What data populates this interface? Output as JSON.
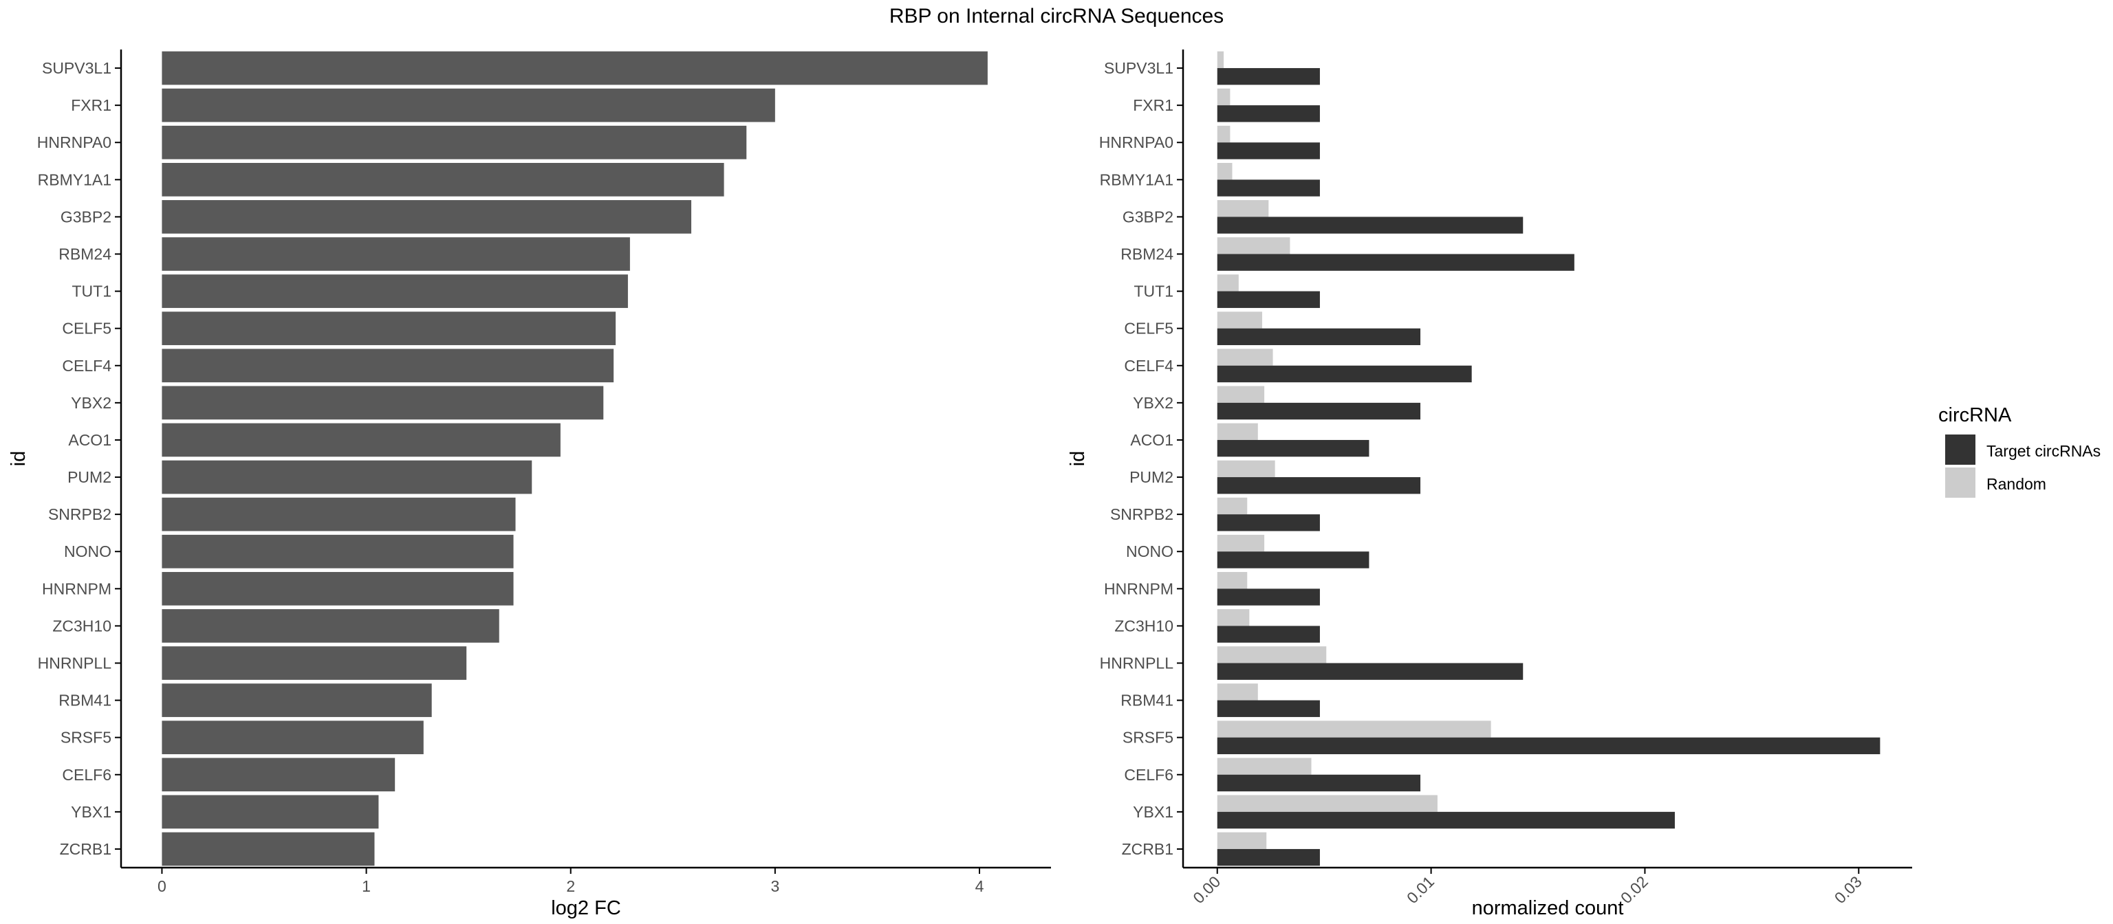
{
  "title": "RBP on Internal circRNA Sequences",
  "colors": {
    "left_bar": "#595959",
    "target": "#333333",
    "random": "#cccccc",
    "axis": "#000000",
    "text": "#4d4d4d"
  },
  "chart_data": [
    {
      "type": "bar",
      "orientation": "horizontal",
      "categories": [
        "SUPV3L1",
        "FXR1",
        "HNRNPA0",
        "RBMY1A1",
        "G3BP2",
        "RBM24",
        "TUT1",
        "CELF5",
        "CELF4",
        "YBX2",
        "ACO1",
        "PUM2",
        "SNRPB2",
        "NONO",
        "HNRNPM",
        "ZC3H10",
        "HNRNPLL",
        "RBM41",
        "SRSF5",
        "CELF6",
        "YBX1",
        "ZCRB1"
      ],
      "values": [
        4.04,
        3.0,
        2.86,
        2.75,
        2.59,
        2.29,
        2.28,
        2.22,
        2.21,
        2.16,
        1.95,
        1.81,
        1.73,
        1.72,
        1.72,
        1.65,
        1.49,
        1.32,
        1.28,
        1.14,
        1.06,
        1.04
      ],
      "xlabel": "log2 FC",
      "ylabel": "id",
      "xlim": [
        -0.2,
        4.35
      ],
      "xticks": [
        "0",
        "1",
        "2",
        "3",
        "4"
      ],
      "grid": false
    },
    {
      "type": "bar",
      "orientation": "horizontal",
      "grouped": true,
      "categories": [
        "SUPV3L1",
        "FXR1",
        "HNRNPA0",
        "RBMY1A1",
        "G3BP2",
        "RBM24",
        "TUT1",
        "CELF5",
        "CELF4",
        "YBX2",
        "ACO1",
        "PUM2",
        "SNRPB2",
        "NONO",
        "HNRNPM",
        "ZC3H10",
        "HNRNPLL",
        "RBM41",
        "SRSF5",
        "CELF6",
        "YBX1",
        "ZCRB1"
      ],
      "series": [
        {
          "name": "Target circRNAs",
          "values": [
            0.0048,
            0.0048,
            0.0048,
            0.0048,
            0.0143,
            0.0167,
            0.0048,
            0.0095,
            0.0119,
            0.0095,
            0.0071,
            0.0095,
            0.0048,
            0.0071,
            0.0048,
            0.0048,
            0.0143,
            0.0048,
            0.031,
            0.0095,
            0.0214,
            0.0048
          ]
        },
        {
          "name": "Random",
          "values": [
            0.0003,
            0.0006,
            0.0006,
            0.0007,
            0.0024,
            0.0034,
            0.001,
            0.0021,
            0.0026,
            0.0022,
            0.0019,
            0.0027,
            0.0014,
            0.0022,
            0.0014,
            0.0015,
            0.0051,
            0.0019,
            0.0128,
            0.0044,
            0.0103,
            0.0023
          ]
        }
      ],
      "xlabel": "normalized count",
      "ylabel": "id",
      "xlim": [
        -0.0016,
        0.0325
      ],
      "xticks": [
        "0.00",
        "0.01",
        "0.02",
        "0.03"
      ],
      "grid": false,
      "legend": {
        "title": "circRNA",
        "position": "right",
        "entries": [
          "Target circRNAs",
          "Random"
        ]
      }
    }
  ]
}
